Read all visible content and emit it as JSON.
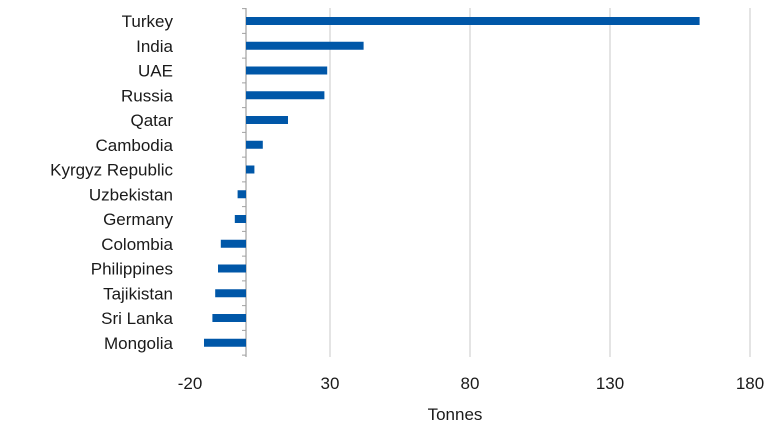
{
  "chart_data": {
    "type": "bar",
    "orientation": "horizontal",
    "categories": [
      "Turkey",
      "India",
      "UAE",
      "Russia",
      "Qatar",
      "Cambodia",
      "Kyrgyz Republic",
      "Uzbekistan",
      "Germany",
      "Colombia",
      "Philippines",
      "Tajikistan",
      "Sri Lanka",
      "Mongolia"
    ],
    "values": [
      162,
      42,
      29,
      28,
      15,
      6,
      3,
      -3,
      -4,
      -9,
      -10,
      -11,
      -12,
      -15
    ],
    "title": "",
    "xlabel": "Tonnes",
    "ylabel": "",
    "xlim": [
      -20,
      180
    ],
    "xticks": [
      -20,
      30,
      80,
      130,
      180
    ],
    "xtick_labels": [
      "-20",
      "30",
      "80",
      "130",
      "180"
    ],
    "grid": "vertical",
    "legend": "none",
    "bar_color": "#0057a8",
    "grid_color": "#c8c8c8",
    "axis_color": "#a0a0a0"
  }
}
